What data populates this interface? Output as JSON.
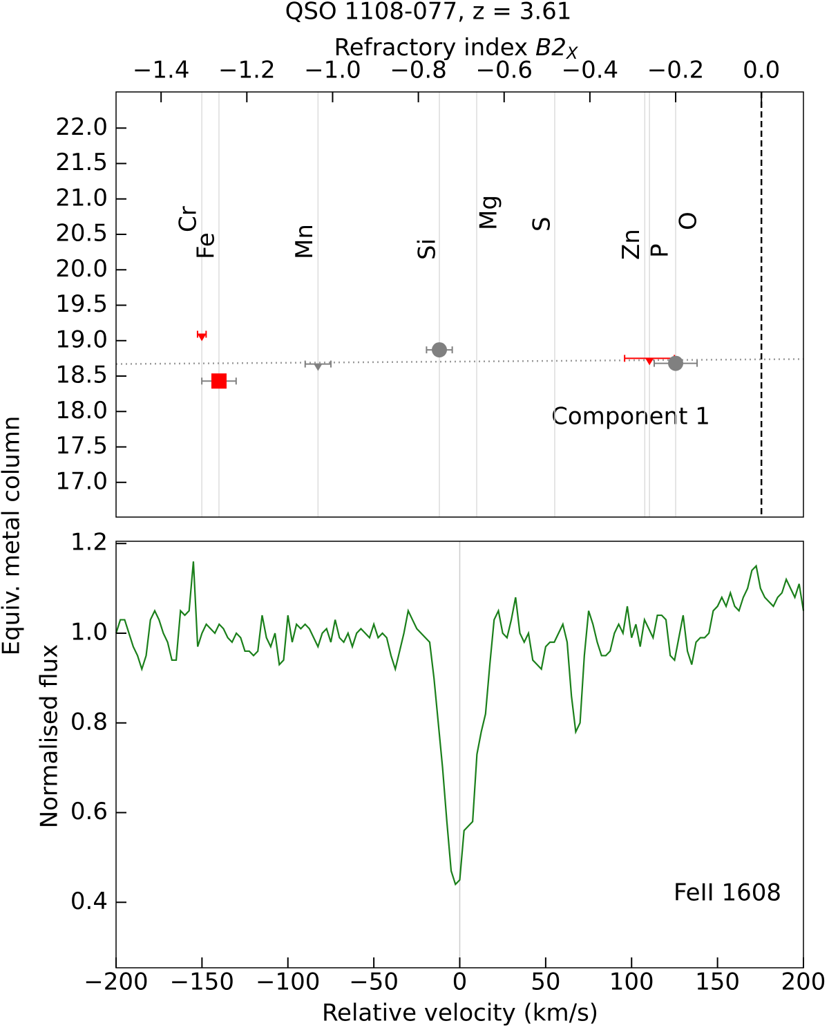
{
  "chart_data": [
    {
      "type": "scatter",
      "title": "QSO 1108-077, z = 3.61",
      "xlabel": "Refractory index ",
      "xlabel_symbol": "B2",
      "xlabel_subscript": "X",
      "ylabel": "Equiv. metal column",
      "xlim": [
        -1.505,
        0.098
      ],
      "ylim": [
        16.51,
        22.51
      ],
      "xticks": [
        {
          "value": -1.4,
          "label": "−1.4"
        },
        {
          "value": -1.2,
          "label": "−1.2"
        },
        {
          "value": -1.0,
          "label": "−1.0"
        },
        {
          "value": -0.8,
          "label": "−0.8"
        },
        {
          "value": -0.6,
          "label": "−0.6"
        },
        {
          "value": -0.4,
          "label": "−0.4"
        },
        {
          "value": -0.2,
          "label": "−0.2"
        },
        {
          "value": 0,
          "label": "0.0"
        }
      ],
      "yticks": [
        {
          "value": 22,
          "label": "22.0"
        },
        21.5,
        {
          "value": 21,
          "label": "21.0"
        },
        20.5,
        {
          "value": 20,
          "label": "20.0"
        },
        19.5,
        {
          "value": 19,
          "label": "19.0"
        },
        18.5,
        {
          "value": 18,
          "label": "18.0"
        },
        17.5,
        {
          "value": 17,
          "label": "17.0"
        }
      ],
      "elements": [
        {
          "name": "Cr",
          "x": -1.305,
          "color": "#ff0000",
          "y": 19.09,
          "xerr": 0.01,
          "marker": "upper-limit",
          "errcolor": "#ff0000"
        },
        {
          "name": "Fe",
          "x": -1.265,
          "color": "#ff0000",
          "y": 18.43,
          "xerr": 0.04,
          "marker": "square",
          "errcolor": "#808080"
        },
        {
          "name": "Mn",
          "x": -1.034,
          "color": "#808080",
          "y": 18.67,
          "xerr": 0.03,
          "marker": "upper-limit",
          "errcolor": "#808080"
        },
        {
          "name": "Si",
          "x": -0.751,
          "color": "#808080",
          "y": 18.87,
          "xerr": 0.03,
          "marker": "circle",
          "errcolor": "#808080"
        },
        {
          "name": "Mg",
          "x": -0.664,
          "color": "#808080"
        },
        {
          "name": "S",
          "x": -0.482,
          "color": "#808080"
        },
        {
          "name": "Zn",
          "x": -0.272,
          "color": "#ff0000"
        },
        {
          "name": "P",
          "x": -0.261,
          "color": "#ff0000",
          "y": 18.75,
          "xerr": 0.058,
          "marker": "upper-limit",
          "errcolor": "#ff0000"
        },
        {
          "name": "O",
          "x": -0.2,
          "color": "#808080",
          "y": 18.68,
          "xerr": 0.05,
          "marker": "circle",
          "errcolor": "#808080"
        }
      ],
      "fit": {
        "x": [
          -1.505,
          0.098
        ],
        "y": [
          18.67,
          18.74
        ],
        "color": "#999999"
      },
      "vline": 0,
      "annotation": "Component 1"
    },
    {
      "type": "line",
      "xlabel": "Relative velocity (km/s)",
      "ylabel": "Normalised flux",
      "annotation": "FeII 1608",
      "xlim": [
        -200,
        200
      ],
      "ylim": [
        0.254,
        1.205
      ],
      "xticks": [
        {
          "value": -200,
          "label": "−200"
        },
        {
          "value": -150,
          "label": "−150"
        },
        {
          "value": -100,
          "label": "−100"
        },
        {
          "value": -50,
          "label": "−50"
        },
        0,
        50,
        100,
        150,
        200
      ],
      "yticks": [
        1.2,
        {
          "value": 1,
          "label": "1.0"
        },
        0.8,
        0.6,
        0.4
      ],
      "vline": 0,
      "color": "#1a7f1a",
      "x": [
        -200,
        -197.5,
        -195,
        -192.5,
        -190,
        -187.5,
        -185,
        -182.5,
        -180,
        -177.5,
        -175,
        -172.5,
        -170,
        -167.5,
        -165,
        -162.5,
        -160,
        -157.5,
        -155,
        -152.5,
        -150,
        -147.5,
        -145,
        -142.5,
        -140,
        -137.5,
        -135,
        -132.5,
        -130,
        -127.5,
        -125,
        -122.5,
        -120,
        -117.5,
        -115,
        -112.5,
        -110,
        -107.5,
        -105,
        -102.5,
        -100,
        -97.5,
        -95,
        -92.5,
        -90,
        -87.5,
        -85,
        -82.5,
        -80,
        -77.5,
        -75,
        -72.5,
        -70,
        -67.5,
        -65,
        -62.5,
        -60,
        -57.5,
        -55,
        -52.5,
        -50,
        -47.5,
        -45,
        -42.5,
        -40,
        -37.5,
        -35,
        -32.5,
        -30,
        -27.5,
        -25,
        -22.5,
        -20,
        -17.5,
        -15,
        -12.5,
        -10,
        -7.5,
        -5,
        -2.5,
        0,
        2.5,
        5,
        7.5,
        10,
        12.5,
        15,
        17.5,
        20,
        22.5,
        25,
        27.5,
        30,
        32.5,
        35,
        37.5,
        40,
        42.5,
        45,
        47.5,
        50,
        52.5,
        55,
        57.5,
        60,
        62.5,
        65,
        67.5,
        70,
        72.5,
        75,
        77.5,
        80,
        82.5,
        85,
        87.5,
        90,
        92.5,
        95,
        97.5,
        100,
        102.5,
        105,
        107.5,
        110,
        112.5,
        115,
        117.5,
        120,
        122.5,
        125,
        127.5,
        130,
        132.5,
        135,
        137.5,
        140,
        142.5,
        145,
        147.5,
        150,
        152.5,
        155,
        157.5,
        160,
        162.5,
        165,
        167.5,
        170,
        172.5,
        175,
        177.5,
        180,
        182.5,
        185,
        187.5,
        190,
        192.5,
        195,
        197.5,
        200
      ],
      "values": [
        1.0,
        1.03,
        1.03,
        1.0,
        0.97,
        0.95,
        0.92,
        0.95,
        1.03,
        1.05,
        1.03,
        1.0,
        0.98,
        0.94,
        0.94,
        1.05,
        1.04,
        1.05,
        1.16,
        0.97,
        1.0,
        1.02,
        1.01,
        1.0,
        1.02,
        1.01,
        0.99,
        0.98,
        1.0,
        0.99,
        0.96,
        0.96,
        0.95,
        0.96,
        1.04,
        0.99,
        0.97,
        1.0,
        0.93,
        0.94,
        1.04,
        0.98,
        1.02,
        1.01,
        1.02,
        1.01,
        0.99,
        0.97,
        1.0,
        1.01,
        0.98,
        1.03,
        0.99,
        0.98,
        1.0,
        0.97,
        1.0,
        1.01,
        1.0,
        0.99,
        1.02,
        0.99,
        1.0,
        0.99,
        0.95,
        0.92,
        0.96,
        1.0,
        1.05,
        1.03,
        1.01,
        1.0,
        0.99,
        0.98,
        0.9,
        0.8,
        0.7,
        0.58,
        0.47,
        0.44,
        0.45,
        0.56,
        0.57,
        0.58,
        0.73,
        0.78,
        0.82,
        0.93,
        1.03,
        1.05,
        1.0,
        0.99,
        1.03,
        1.08,
        1.0,
        0.98,
        1.0,
        0.94,
        0.93,
        0.92,
        0.97,
        0.98,
        0.98,
        1.0,
        1.02,
        0.98,
        0.86,
        0.78,
        0.8,
        0.95,
        1.05,
        1.02,
        0.98,
        0.95,
        0.95,
        0.96,
        1.0,
        1.02,
        1.0,
        1.06,
        0.99,
        1.02,
        0.97,
        1.03,
        1.01,
        0.99,
        1.04,
        1.04,
        1.03,
        0.95,
        0.94,
        0.99,
        1.04,
        0.96,
        0.93,
        0.98,
        0.99,
        0.99,
        1.0,
        1.05,
        1.06,
        1.08,
        1.06,
        1.09,
        1.06,
        1.05,
        1.08,
        1.1,
        1.14,
        1.15,
        1.1,
        1.08,
        1.07,
        1.06,
        1.08,
        1.09,
        1.12,
        1.1,
        1.08,
        1.11,
        1.05
      ]
    }
  ]
}
